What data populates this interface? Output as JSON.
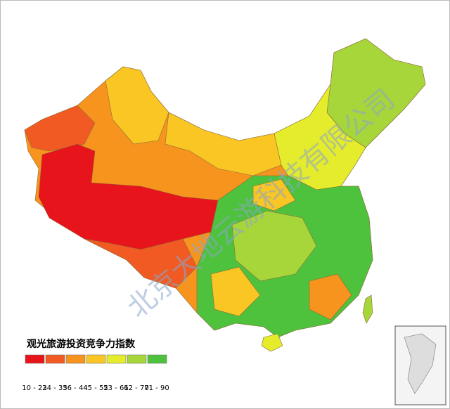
{
  "legend": {
    "title": "观光旅游投资竞争力指数",
    "items": [
      {
        "label": "10 - 23",
        "color": "#e8141b"
      },
      {
        "label": "24 - 35",
        "color": "#f15a22"
      },
      {
        "label": "36 - 44",
        "color": "#f7941d"
      },
      {
        "label": "45 - 52",
        "color": "#f9c623"
      },
      {
        "label": "53 - 61",
        "color": "#e5ec2b"
      },
      {
        "label": "62 - 70",
        "color": "#a6d63a"
      },
      {
        "label": "71 - 90",
        "color": "#4ec23d"
      }
    ]
  },
  "watermark": "北京大地云游科技有限公司"
}
